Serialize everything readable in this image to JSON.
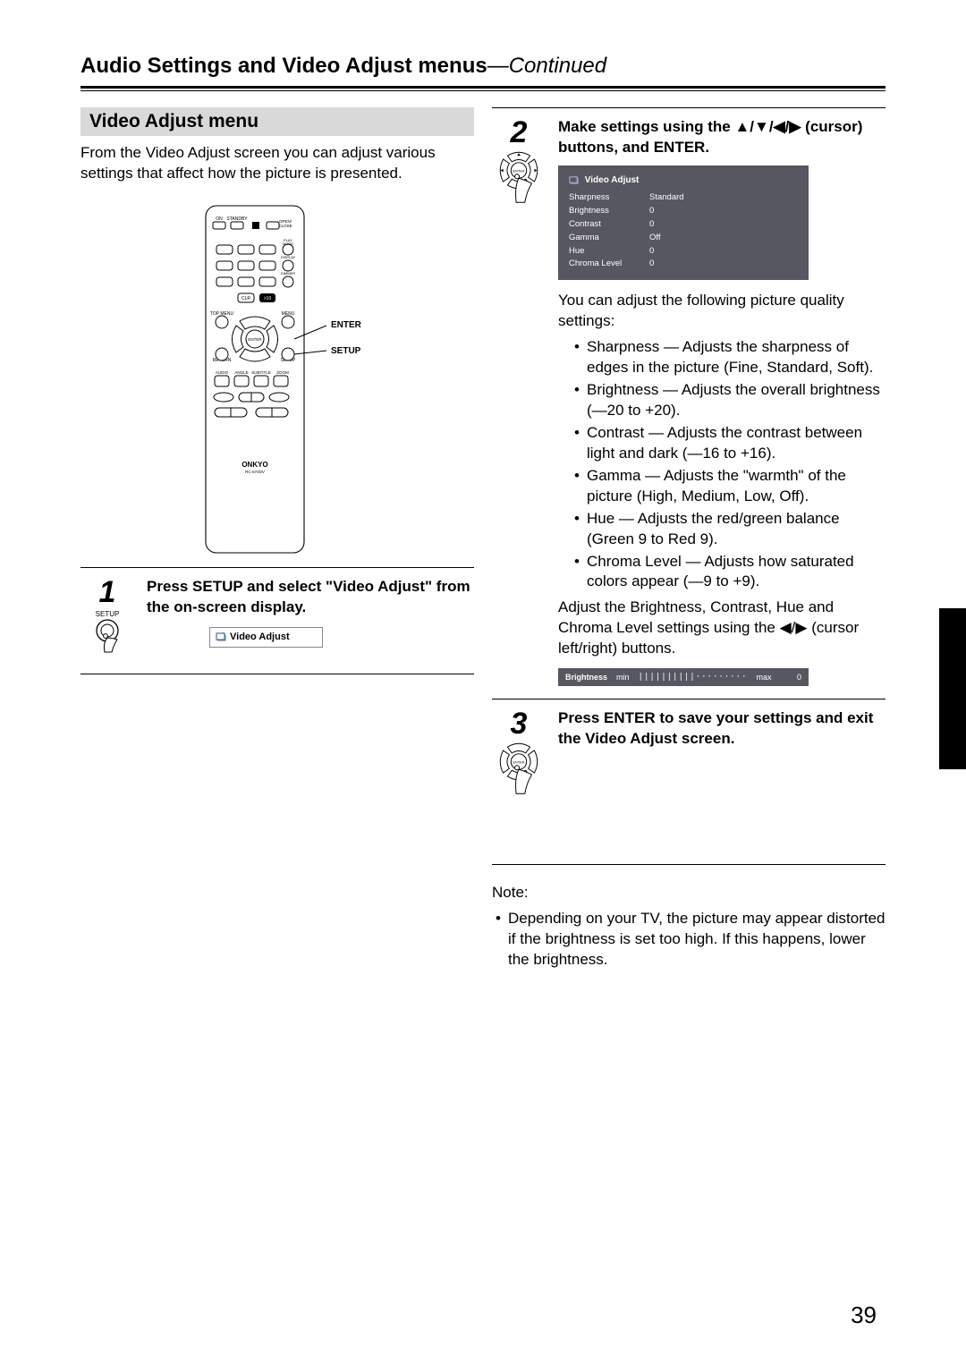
{
  "page": {
    "title_main": "Audio Settings and Video Adjust menus",
    "title_continued": "—Continued",
    "page_number": "39"
  },
  "section": {
    "heading": "Video Adjust menu",
    "intro": "From the Video Adjust screen you can adjust various settings that affect how the picture is presented."
  },
  "remote": {
    "brand": "ONKYO",
    "model": "RC-574DV",
    "callout_enter": "ENTER",
    "callout_setup": "SETUP",
    "labels": {
      "on": "ON",
      "standby": "STANDBY",
      "open_close": "OPEN/\nCLOSE",
      "play_mode": "PLAY\nMODE",
      "display": "DISPLAY",
      "dimmer": "DIMMER",
      "clr": "CLR",
      "ten": ">10",
      "top_menu": "TOP MENU",
      "menu": "MENU",
      "enter": "ENTER",
      "return": "RETURN",
      "setup": "SETUP",
      "audio": "AUDIO",
      "angle": "ANGLE",
      "subtitle": "SUBTITLE",
      "zoom": "ZOOM"
    }
  },
  "step1": {
    "num": "1",
    "btn_label": "SETUP",
    "text_bold": "Press SETUP and select \"Video Adjust\" from the on-screen display.",
    "osd_label": "Video Adjust"
  },
  "step2": {
    "num": "2",
    "heading": "Make settings using the ▲/▼/◀/▶ (cursor) buttons, and ENTER.",
    "osd": {
      "title": "Video Adjust",
      "rows": [
        {
          "label": "Sharpness",
          "value": "Standard"
        },
        {
          "label": "Brightness",
          "value": "0"
        },
        {
          "label": "Contrast",
          "value": "0"
        },
        {
          "label": "Gamma",
          "value": "Off"
        },
        {
          "label": "Hue",
          "value": "0"
        },
        {
          "label": "Chroma Level",
          "value": "0"
        }
      ],
      "bg_color": "#575761",
      "text_color": "#ffffff"
    },
    "after_panel": "You can adjust the following picture quality settings:",
    "bullets": [
      "Sharpness — Adjusts the sharpness of edges in the picture (Fine, Standard, Soft).",
      "Brightness — Adjusts the overall brightness (—20 to +20).",
      "Contrast — Adjusts the contrast between light and dark (—16 to +16).",
      "Gamma — Adjusts the \"warmth\" of the picture (High, Medium, Low, Off).",
      "Hue — Adjusts the red/green balance (Green 9 to Red 9).",
      "Chroma Level — Adjusts how saturated colors appear (—9 to +9)."
    ],
    "adjust_note": "Adjust the Brightness, Contrast, Hue and Chroma Level settings using the ◀/▶ (cursor left/right) buttons.",
    "slider": {
      "label": "Brightness",
      "min": "min",
      "max": "max",
      "value": "0",
      "ticks": "||||||||||·········"
    }
  },
  "step3": {
    "num": "3",
    "text_bold": "Press ENTER to save your settings and exit the Video Adjust screen."
  },
  "note": {
    "heading": "Note:",
    "bullet": "Depending on your TV, the picture may appear distorted if the brightness is set too high. If this happens, lower the brightness."
  }
}
